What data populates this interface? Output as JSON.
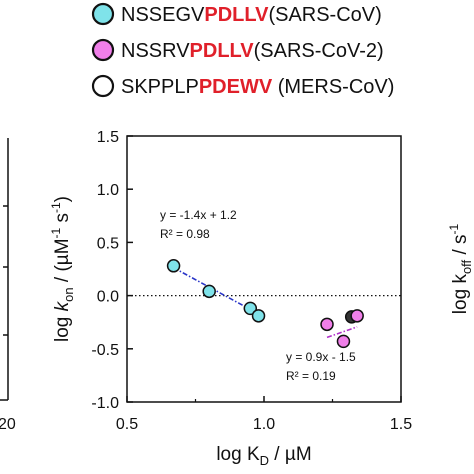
{
  "legend": [
    {
      "prefix": "NSSEGV",
      "motif": "PDLLV",
      "suffix": "(SARS-CoV)",
      "fill": "#7fe3ea"
    },
    {
      "prefix": "NSSRV",
      "motif": "PDLLV",
      "suffix": "(SARS-CoV-2)",
      "fill": "#f07fe9"
    },
    {
      "prefix": "SKPPLP",
      "motif": "PDEWV",
      "suffix": " (MERS-CoV)",
      "fill": "#333333"
    }
  ],
  "colors": {
    "motif": "#e0202a",
    "axis": "#111111",
    "cyan_fit": "#2a36c8",
    "magenta_fit": "#b030c8"
  },
  "left_panel": {
    "tick_label": "20"
  },
  "right_axis": {
    "label_main": "log k",
    "label_sub": "off",
    "label_unit": " / s",
    "label_sup": "-1"
  },
  "chart_data": {
    "type": "scatter",
    "xlabel": "log K_D / µM",
    "xlabel_parts": {
      "main": "log K",
      "sub": "D",
      "unit": " / µM"
    },
    "ylabel_parts": {
      "main": "log ",
      "k": "k",
      "sub": "on",
      "mid": " / (µM",
      "sup1": "-1",
      "s": " s",
      "sup2": "-1",
      "end": ")"
    },
    "xlim": [
      0.5,
      1.5
    ],
    "ylim": [
      -1.0,
      1.5
    ],
    "xticks": [
      "0.5",
      "1.0",
      "1.5"
    ],
    "xtick_values": [
      0.5,
      1.0,
      1.5
    ],
    "yticks": [
      "1.5",
      "1.0",
      "0.5",
      "0.0",
      "-0.5",
      "-1.0"
    ],
    "ytick_values": [
      1.5,
      1.0,
      0.5,
      0.0,
      -0.5,
      -1.0
    ],
    "reference_line_y": 0.0,
    "series": [
      {
        "name": "NSSEGVPDLLV(SARS-CoV)",
        "color": "#7fe3ea",
        "x": [
          0.67,
          0.8,
          0.95,
          0.98
        ],
        "y": [
          0.28,
          0.04,
          -0.12,
          -0.19
        ],
        "fit": {
          "equation": "y = -1.4x + 1.2",
          "r2": "R² = 0.98",
          "x_range": [
            0.67,
            0.98
          ],
          "slope": -1.4,
          "intercept": 1.2
        }
      },
      {
        "name": "NSSRVPDLLV(SARS-CoV-2)",
        "color": "#f07fe9",
        "x": [
          1.23,
          1.29,
          1.34
        ],
        "y": [
          -0.27,
          -0.43,
          -0.19
        ],
        "fit": {
          "equation": "y = 0.9x - 1.5",
          "r2": "R² = 0.19",
          "x_range": [
            1.23,
            1.34
          ],
          "slope": 0.9,
          "intercept": -1.5
        }
      },
      {
        "name": "SKPPLPPDEWV (MERS-CoV)",
        "color": "#333333",
        "x": [
          1.32
        ],
        "y": [
          -0.2
        ]
      }
    ]
  }
}
